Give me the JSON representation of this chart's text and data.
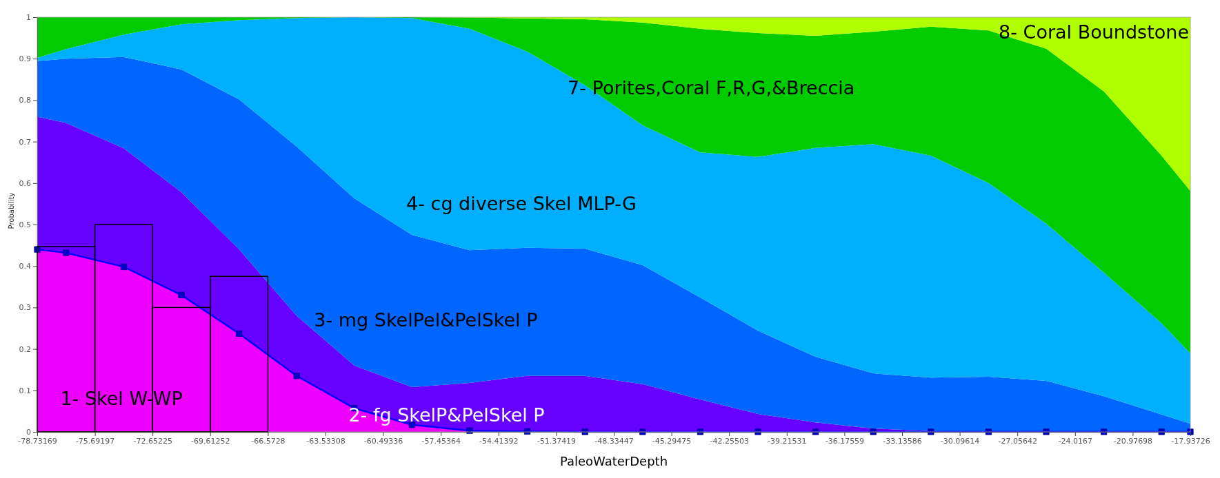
{
  "chart_data": [
    {
      "type": "area",
      "stacked": true,
      "xlabel": "PaleoWaterDepth",
      "ylabel": "Probability",
      "grid": false,
      "x": [
        -78.73169,
        -77.21183,
        -74.17211,
        -71.13239,
        -68.09266,
        -65.05294,
        -62.01322,
        -58.9735,
        -55.93378,
        -52.89405,
        -49.85433,
        -46.81461,
        -43.77489,
        -40.73517,
        -37.69545,
        -34.65572,
        -31.616,
        -28.57628,
        -25.53656,
        -22.49683,
        -19.45711,
        -17.93726
      ],
      "xlim": [
        -78.73169,
        -17.93726
      ],
      "xticks": [
        -78.73169,
        -75.69197,
        -72.65225,
        -69.61252,
        -66.5728,
        -63.53308,
        -60.49336,
        -57.45364,
        -54.41392,
        -51.37419,
        -48.33447,
        -45.29475,
        -42.25503,
        -39.21531,
        -36.17559,
        -33.13586,
        -30.09614,
        -27.05642,
        -24.0167,
        -20.97698,
        -17.93726
      ],
      "ylim": [
        0,
        1
      ],
      "yticks": [
        0,
        0.1,
        0.2,
        0.3,
        0.4,
        0.5,
        0.6,
        0.7,
        0.8,
        0.9,
        1
      ],
      "series": [
        {
          "name": "1- Skel W-WP",
          "color": "#ee00ff",
          "marker": "square",
          "values": [
            0.44,
            0.432,
            0.398,
            0.33,
            0.237,
            0.135,
            0.057,
            0.017,
            0.003,
            0.001,
            0,
            0,
            0,
            0,
            0,
            0,
            0,
            0,
            0,
            0,
            0,
            0
          ]
        },
        {
          "name": "2- fg SkelP&PelSkel P",
          "color": "#6600ff",
          "values": [
            0.32,
            0.313,
            0.286,
            0.248,
            0.203,
            0.145,
            0.103,
            0.091,
            0.115,
            0.134,
            0.135,
            0.115,
            0.078,
            0.043,
            0.023,
            0.008,
            0.002,
            0,
            0,
            0,
            0,
            0
          ]
        },
        {
          "name": "3- mg SkelPel&PelSkel P",
          "color": "#0066ff",
          "values": [
            0.134,
            0.155,
            0.22,
            0.296,
            0.362,
            0.408,
            0.403,
            0.367,
            0.32,
            0.309,
            0.307,
            0.287,
            0.246,
            0.201,
            0.158,
            0.133,
            0.129,
            0.133,
            0.123,
            0.086,
            0.042,
            0.02
          ]
        },
        {
          "name": "4- cg diverse Skel MLP-G",
          "color": "#00b0ff",
          "values": [
            0.008,
            0.023,
            0.054,
            0.109,
            0.191,
            0.31,
            0.437,
            0.523,
            0.534,
            0.473,
            0.394,
            0.337,
            0.35,
            0.419,
            0.504,
            0.553,
            0.535,
            0.467,
            0.379,
            0.298,
            0.22,
            0.169
          ]
        },
        {
          "name": "7- Porites,Coral F,R,G,&Breccia",
          "color": "#00cc00",
          "values": [
            0.098,
            0.077,
            0.042,
            0.017,
            0.007,
            0.002,
            0,
            0.002,
            0.027,
            0.08,
            0.159,
            0.248,
            0.298,
            0.299,
            0.27,
            0.271,
            0.311,
            0.368,
            0.422,
            0.437,
            0.404,
            0.392
          ]
        },
        {
          "name": "8- Coral Boundstone",
          "color": "#b0ff00",
          "values": [
            0,
            0,
            0,
            0,
            0,
            0,
            0,
            0,
            0.001,
            0.003,
            0.005,
            0.013,
            0.028,
            0.038,
            0.045,
            0.035,
            0.023,
            0.032,
            0.076,
            0.179,
            0.334,
            0.419
          ]
        }
      ]
    },
    {
      "type": "histogram",
      "color": "#000000",
      "bins": [
        -78.73169,
        -75.69197,
        -72.65225,
        -69.61252,
        -66.5728
      ],
      "values": [
        0.447,
        0.5,
        0.3,
        0.375
      ],
      "xlim": [
        -78.73169,
        -17.93726
      ],
      "ylim": [
        0,
        1
      ],
      "tick_labels": false
    }
  ]
}
